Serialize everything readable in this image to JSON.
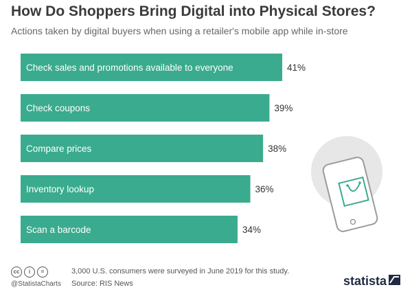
{
  "header": {
    "title": "How Do Shoppers Bring Digital into Physical Stores?",
    "subtitle": "Actions taken by digital buyers when using a retailer's mobile app while in-store"
  },
  "chart_data": {
    "type": "bar",
    "orientation": "horizontal",
    "categories": [
      "Check sales and promotions available to everyone",
      "Check coupons",
      "Compare prices",
      "Inventory lookup",
      "Scan a barcode"
    ],
    "values": [
      41,
      39,
      38,
      36,
      34
    ],
    "value_labels": [
      "41%",
      "39%",
      "38%",
      "36%",
      "34%"
    ],
    "unit": "%",
    "bar_color": "#3aab8e",
    "title": "How Do Shoppers Bring Digital into Physical Stores?",
    "subtitle": "Actions taken by digital buyers when using a retailer's mobile app while in-store",
    "grid": false,
    "legend": "none"
  },
  "illustration": {
    "name": "smartphone-shopping-bag-icon",
    "circle_color": "#e7e7e7",
    "accent_color": "#3aab8e"
  },
  "footer": {
    "license_icons": [
      "cc",
      "i",
      "="
    ],
    "handle": "@StatistaCharts",
    "note": "3,000 U.S. consumers were surveyed in June 2019 for this study.",
    "source": "Source: RIS News",
    "brand": "statista"
  }
}
